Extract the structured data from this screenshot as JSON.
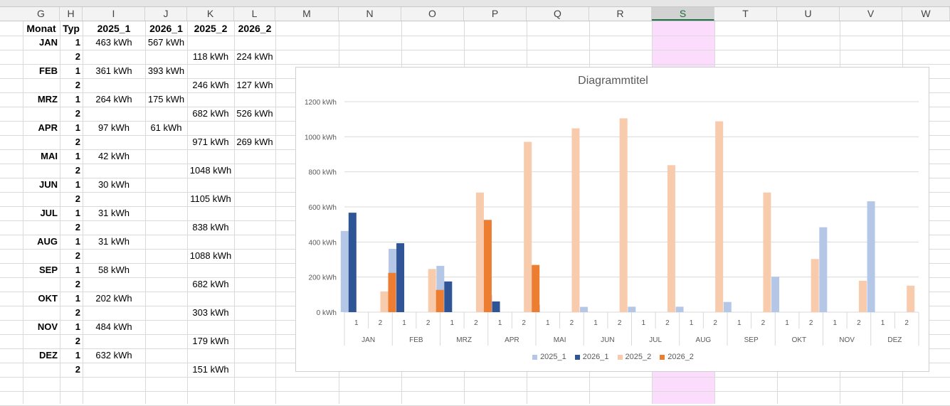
{
  "columns": [
    "G",
    "H",
    "I",
    "J",
    "K",
    "L",
    "M",
    "N",
    "O",
    "P",
    "Q",
    "R",
    "S",
    "T",
    "U",
    "V",
    "W"
  ],
  "selected_column": "S",
  "table": {
    "headers": [
      "Monat",
      "Typ",
      "2025_1",
      "2026_1",
      "2025_2",
      "2026_2"
    ],
    "rows": [
      {
        "month": "JAN",
        "typ": "1",
        "v2025_1": "463 kWh",
        "v2026_1": "567 kWh",
        "v2025_2": "",
        "v2026_2": ""
      },
      {
        "month": "",
        "typ": "2",
        "v2025_1": "",
        "v2026_1": "",
        "v2025_2": "118 kWh",
        "v2026_2": "224 kWh"
      },
      {
        "month": "FEB",
        "typ": "1",
        "v2025_1": "361 kWh",
        "v2026_1": "393 kWh",
        "v2025_2": "",
        "v2026_2": ""
      },
      {
        "month": "",
        "typ": "2",
        "v2025_1": "",
        "v2026_1": "",
        "v2025_2": "246 kWh",
        "v2026_2": "127 kWh"
      },
      {
        "month": "MRZ",
        "typ": "1",
        "v2025_1": "264 kWh",
        "v2026_1": "175 kWh",
        "v2025_2": "",
        "v2026_2": ""
      },
      {
        "month": "",
        "typ": "2",
        "v2025_1": "",
        "v2026_1": "",
        "v2025_2": "682 kWh",
        "v2026_2": "526 kWh"
      },
      {
        "month": "APR",
        "typ": "1",
        "v2025_1": "97 kWh",
        "v2026_1": "61 kWh",
        "v2025_2": "",
        "v2026_2": ""
      },
      {
        "month": "",
        "typ": "2",
        "v2025_1": "",
        "v2026_1": "",
        "v2025_2": "971 kWh",
        "v2026_2": "269 kWh"
      },
      {
        "month": "MAI",
        "typ": "1",
        "v2025_1": "42 kWh",
        "v2026_1": "",
        "v2025_2": "",
        "v2026_2": ""
      },
      {
        "month": "",
        "typ": "2",
        "v2025_1": "",
        "v2026_1": "",
        "v2025_2": "1048 kWh",
        "v2026_2": ""
      },
      {
        "month": "JUN",
        "typ": "1",
        "v2025_1": "30 kWh",
        "v2026_1": "",
        "v2025_2": "",
        "v2026_2": ""
      },
      {
        "month": "",
        "typ": "2",
        "v2025_1": "",
        "v2026_1": "",
        "v2025_2": "1105 kWh",
        "v2026_2": ""
      },
      {
        "month": "JUL",
        "typ": "1",
        "v2025_1": "31 kWh",
        "v2026_1": "",
        "v2025_2": "",
        "v2026_2": ""
      },
      {
        "month": "",
        "typ": "2",
        "v2025_1": "",
        "v2026_1": "",
        "v2025_2": "838 kWh",
        "v2026_2": ""
      },
      {
        "month": "AUG",
        "typ": "1",
        "v2025_1": "31 kWh",
        "v2026_1": "",
        "v2025_2": "",
        "v2026_2": ""
      },
      {
        "month": "",
        "typ": "2",
        "v2025_1": "",
        "v2026_1": "",
        "v2025_2": "1088 kWh",
        "v2026_2": ""
      },
      {
        "month": "SEP",
        "typ": "1",
        "v2025_1": "58 kWh",
        "v2026_1": "",
        "v2025_2": "",
        "v2026_2": ""
      },
      {
        "month": "",
        "typ": "2",
        "v2025_1": "",
        "v2026_1": "",
        "v2025_2": "682 kWh",
        "v2026_2": ""
      },
      {
        "month": "OKT",
        "typ": "1",
        "v2025_1": "202 kWh",
        "v2026_1": "",
        "v2025_2": "",
        "v2026_2": ""
      },
      {
        "month": "",
        "typ": "2",
        "v2025_1": "",
        "v2026_1": "",
        "v2025_2": "303 kWh",
        "v2026_2": ""
      },
      {
        "month": "NOV",
        "typ": "1",
        "v2025_1": "484 kWh",
        "v2026_1": "",
        "v2025_2": "",
        "v2026_2": ""
      },
      {
        "month": "",
        "typ": "2",
        "v2025_1": "",
        "v2026_1": "",
        "v2025_2": "179 kWh",
        "v2026_2": ""
      },
      {
        "month": "DEZ",
        "typ": "1",
        "v2025_1": "632 kWh",
        "v2026_1": "",
        "v2025_2": "",
        "v2026_2": ""
      },
      {
        "month": "",
        "typ": "2",
        "v2025_1": "",
        "v2026_1": "",
        "v2025_2": "151 kWh",
        "v2026_2": ""
      }
    ]
  },
  "chart_data": {
    "type": "bar",
    "title": "Diagrammtitel",
    "categories": [
      "JAN",
      "FEB",
      "MRZ",
      "APR",
      "MAI",
      "JUN",
      "JUL",
      "AUG",
      "SEP",
      "OKT",
      "NOV",
      "DEZ"
    ],
    "subcategories": [
      "1",
      "2"
    ],
    "y_ticks": [
      "0 kWh",
      "200 kWh",
      "400 kWh",
      "600 kWh",
      "800 kWh",
      "1000 kWh",
      "1200 kWh"
    ],
    "ylim": [
      0,
      1200
    ],
    "grid": true,
    "legend_position": "bottom",
    "series": [
      {
        "name": "2025_1",
        "color": "#b4c7e7",
        "type": "1",
        "values": [
          463,
          361,
          264,
          97,
          42,
          30,
          31,
          31,
          58,
          202,
          484,
          632
        ]
      },
      {
        "name": "2026_1",
        "color": "#2f5597",
        "type": "1",
        "values": [
          567,
          393,
          175,
          61,
          null,
          null,
          null,
          null,
          null,
          null,
          null,
          null
        ]
      },
      {
        "name": "2025_2",
        "color": "#f8cbad",
        "type": "2",
        "values": [
          118,
          246,
          682,
          971,
          1048,
          1105,
          838,
          1088,
          682,
          303,
          179,
          151
        ]
      },
      {
        "name": "2026_2",
        "color": "#ed7d31",
        "type": "2",
        "values": [
          224,
          127,
          526,
          269,
          null,
          null,
          null,
          null,
          null,
          null,
          null,
          null
        ]
      }
    ]
  }
}
